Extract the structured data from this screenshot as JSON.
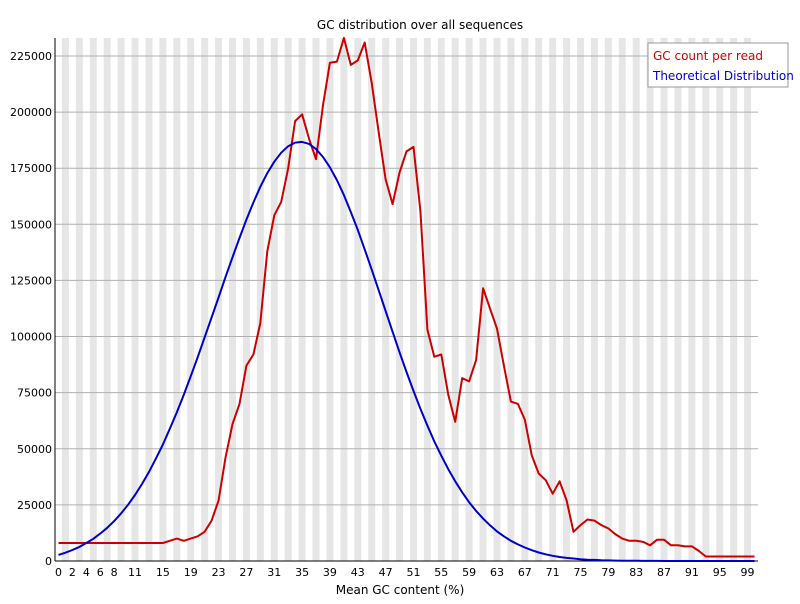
{
  "chart_data": {
    "type": "line",
    "title": "GC distribution over all sequences",
    "xlabel": "Mean GC content (%)",
    "ylabel": "",
    "xlim": [
      0,
      101
    ],
    "ylim": [
      0,
      233000
    ],
    "y_ticks": [
      0,
      25000,
      50000,
      75000,
      100000,
      125000,
      150000,
      175000,
      200000,
      225000
    ],
    "x_tick_labels": [
      "0",
      "2",
      "4",
      "6",
      "8",
      "11",
      "15",
      "19",
      "23",
      "27",
      "31",
      "35",
      "39",
      "43",
      "47",
      "51",
      "55",
      "59",
      "63",
      "67",
      "71",
      "75",
      "79",
      "83",
      "87",
      "91",
      "95",
      "99"
    ],
    "grid": true,
    "legend_position": "top-right",
    "series": [
      {
        "name": "GC count per read",
        "color": "#cc0000",
        "x": [
          0,
          1,
          2,
          3,
          4,
          5,
          6,
          7,
          8,
          9,
          10,
          11,
          12,
          13,
          14,
          15,
          16,
          17,
          18,
          19,
          20,
          21,
          22,
          23,
          24,
          25,
          26,
          27,
          28,
          29,
          30,
          31,
          32,
          33,
          34,
          35,
          36,
          37,
          38,
          39,
          40,
          41,
          42,
          43,
          44,
          45,
          46,
          47,
          48,
          49,
          50,
          51,
          52,
          53,
          54,
          55,
          56,
          57,
          58,
          59,
          60,
          61,
          62,
          63,
          64,
          65,
          66,
          67,
          68,
          69,
          70,
          71,
          72,
          73,
          74,
          75,
          76,
          77,
          78,
          79,
          80,
          81,
          82,
          83,
          84,
          85,
          86,
          87,
          88,
          89,
          90,
          91,
          92,
          93,
          94,
          95,
          96,
          97,
          98,
          99,
          100
        ],
        "values": [
          8000,
          8000,
          8000,
          8000,
          8000,
          8000,
          8000,
          8000,
          8000,
          8000,
          8000,
          8000,
          8000,
          8000,
          8000,
          8000,
          9000,
          10000,
          9000,
          10000,
          11000,
          13000,
          18000,
          27000,
          46000,
          61000,
          70000,
          87000,
          92000,
          106000,
          138000,
          154000,
          160000,
          175000,
          196000,
          199000,
          188000,
          179000,
          203000,
          222000,
          222500,
          233000,
          221000,
          223000,
          231000,
          213000,
          191000,
          170000,
          159000,
          173000,
          182500,
          184500,
          156000,
          103000,
          91000,
          92000,
          74000,
          62000,
          81500,
          80000,
          89500,
          121500,
          112500,
          103500,
          87000,
          71000,
          70000,
          63000,
          47000,
          39000,
          36000,
          30000,
          35500,
          27000,
          13000,
          16000,
          18500,
          18000,
          16000,
          14500,
          12000,
          10000,
          9000,
          9000,
          8500,
          7000,
          9500,
          9500,
          7000,
          7000,
          6500,
          6500,
          4500,
          2000,
          2000,
          2000,
          2000,
          2000,
          2000,
          2000,
          2000
        ]
      },
      {
        "name": "Theoretical Distribution",
        "color": "#0000cc",
        "x": [
          0,
          1,
          2,
          3,
          4,
          5,
          6,
          7,
          8,
          9,
          10,
          11,
          12,
          13,
          14,
          15,
          16,
          17,
          18,
          19,
          20,
          21,
          22,
          23,
          24,
          25,
          26,
          27,
          28,
          29,
          30,
          31,
          32,
          33,
          34,
          35,
          36,
          37,
          38,
          39,
          40,
          41,
          42,
          43,
          44,
          45,
          46,
          47,
          48,
          49,
          50,
          51,
          52,
          53,
          54,
          55,
          56,
          57,
          58,
          59,
          60,
          61,
          62,
          63,
          64,
          65,
          66,
          67,
          68,
          69,
          70,
          71,
          72,
          73,
          74,
          75,
          76,
          77,
          78,
          79,
          80,
          81,
          82,
          83,
          84,
          85,
          86,
          87,
          88,
          89,
          90,
          91,
          92,
          93,
          94,
          95,
          96,
          97,
          98,
          99,
          100
        ],
        "values": [
          2700,
          3700,
          4900,
          6300,
          8000,
          9900,
          12200,
          14800,
          17800,
          21200,
          25100,
          29400,
          34300,
          39700,
          45600,
          51900,
          58900,
          66200,
          74100,
          82300,
          90800,
          99600,
          108500,
          117500,
          126500,
          135300,
          143900,
          152100,
          159700,
          166700,
          172800,
          177900,
          181900,
          184800,
          186400,
          186700,
          185800,
          183500,
          180000,
          175400,
          169700,
          163000,
          155500,
          147500,
          138800,
          129800,
          120600,
          111400,
          102100,
          93000,
          84200,
          75800,
          67800,
          60300,
          53300,
          46900,
          40900,
          35500,
          30600,
          26200,
          22300,
          18900,
          15900,
          13200,
          11000,
          9000,
          7400,
          6000,
          4800,
          3800,
          3000,
          2300,
          1800,
          1400,
          1100,
          800,
          600,
          500,
          300,
          250,
          200,
          150,
          100,
          80,
          60,
          40,
          30,
          20,
          15,
          10,
          10,
          5,
          5,
          5,
          0,
          0,
          0,
          0,
          0,
          0,
          0
        ]
      }
    ]
  }
}
